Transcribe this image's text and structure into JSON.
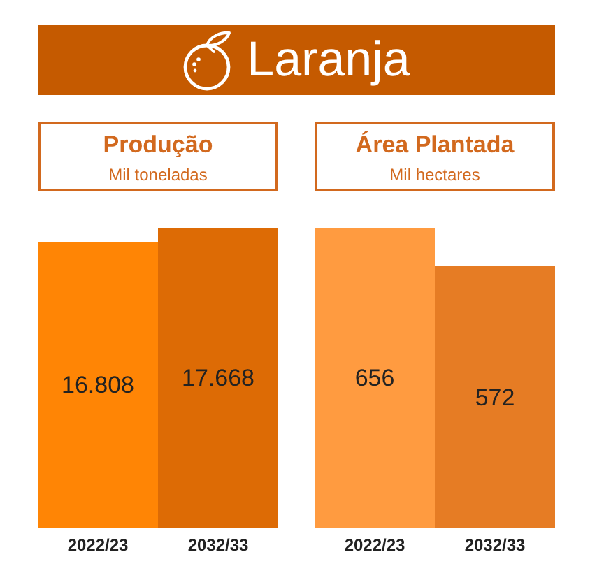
{
  "chart_data": [
    {
      "type": "bar",
      "title": "Produção",
      "subtitle": "Mil toneladas",
      "annotations": [
        "Laranja"
      ],
      "categories": [
        "2022/23",
        "2032/33"
      ],
      "values": [
        16808,
        17668
      ],
      "colors": [
        "#ff8505",
        "#dd6b05"
      ],
      "value_labels": [
        "16.808",
        "17.668"
      ]
    },
    {
      "type": "bar",
      "title": "Área Plantada",
      "subtitle": "Mil hectares",
      "categories": [
        "2022/23",
        "2032/33"
      ],
      "values": [
        656,
        572
      ],
      "colors": [
        "#ff9b40",
        "#e67c24"
      ],
      "data_labels": true
    }
  ]
}
